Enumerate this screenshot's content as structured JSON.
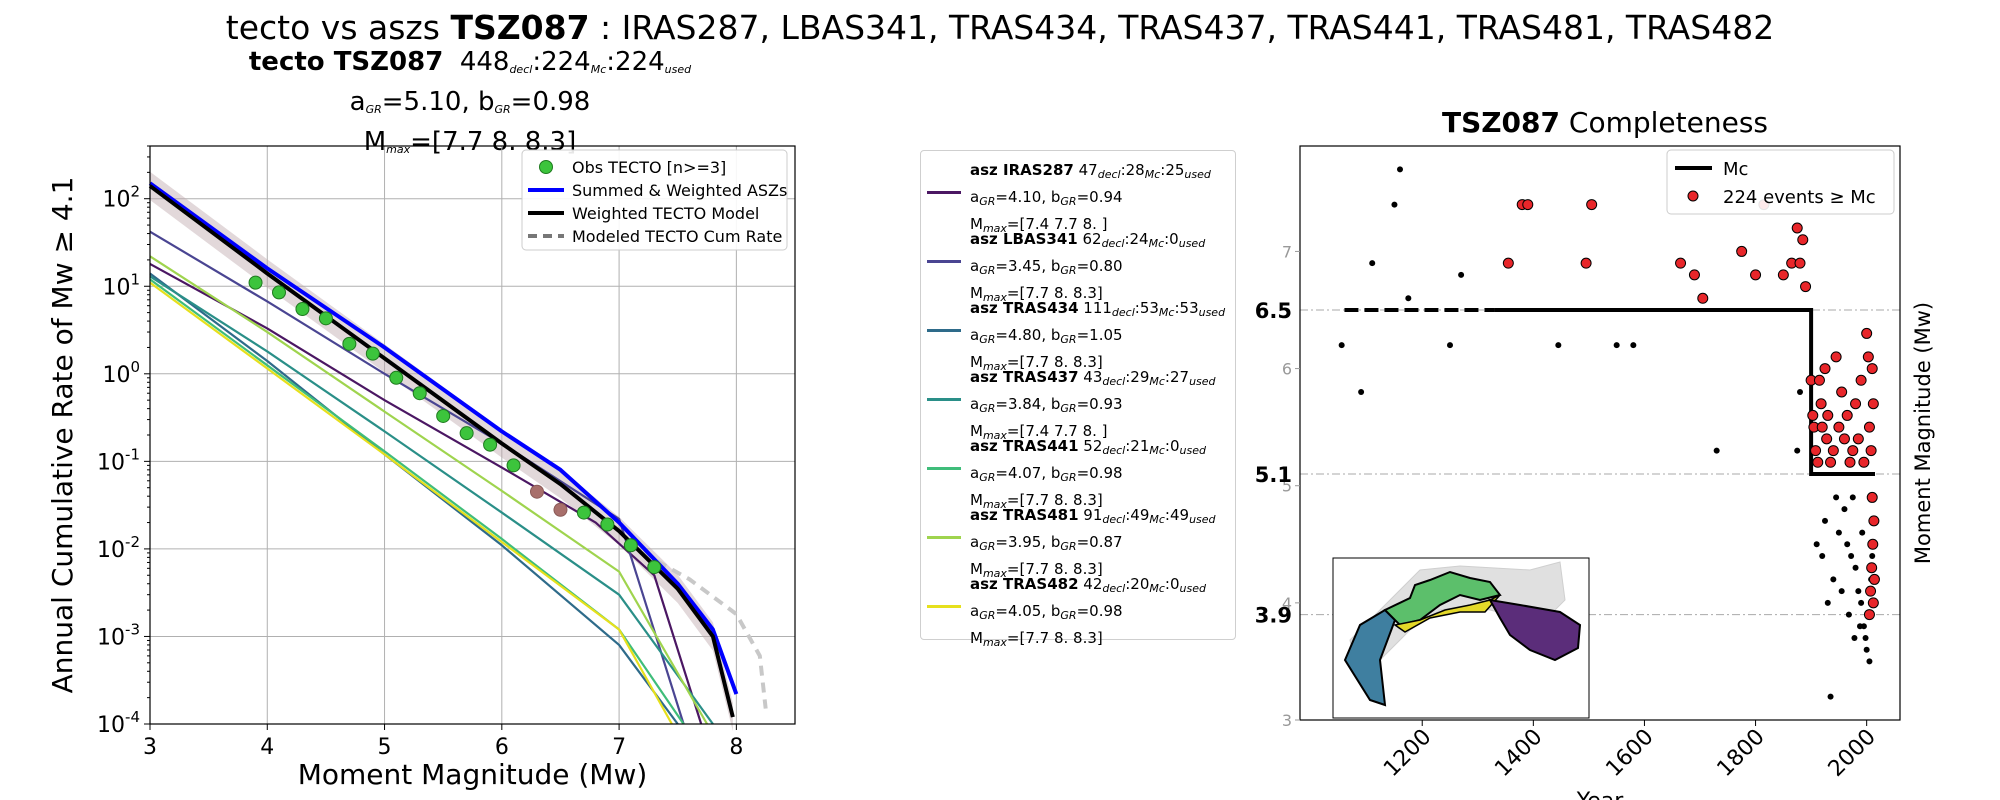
{
  "title": {
    "prefix": "tecto vs aszs",
    "zone": "TSZ087",
    "suffix": ": IRAS287, LBAS341, TRAS434, TRAS437, TRAS441, TRAS481, TRAS482"
  },
  "left_title": {
    "line1_bold": "tecto TSZ087",
    "line1_counts": [
      "448",
      "decl",
      "224",
      "Mc",
      "224",
      "used"
    ],
    "line2": [
      "a",
      "GR",
      "=5.10,  b",
      "GR",
      "=0.98"
    ],
    "line3": [
      "M",
      "max",
      "=[7.7 8.  8.3]"
    ]
  },
  "right_title": {
    "bold": "TSZ087",
    "rest": "Completeness"
  },
  "chart_data": [
    {
      "type": "line",
      "xlabel": "Moment Magnitude (Mw)",
      "ylabel": "Annual Cumulative Rate of Mw",
      "ylabel_suffix": "≥  4.1",
      "xlim": [
        3,
        8.5
      ],
      "ylim": [
        0.0001,
        400
      ],
      "yscale": "log",
      "x_ticks": [
        3,
        4,
        5,
        6,
        7,
        8
      ],
      "y_ticks": [
        "10^2",
        "10^1",
        "10^0",
        "10^-1",
        "10^-2",
        "10^-3",
        "10^-4"
      ],
      "grid": true,
      "legend_position": "top-right",
      "legend": [
        "Obs TECTO [n>=3]",
        "Summed & Weighted ASZs",
        "Weighted TECTO Model",
        "Modeled TECTO Cum Rate"
      ],
      "observed": {
        "name": "Obs TECTO [n>=3]",
        "color": "#3cc43c",
        "x": [
          3.9,
          4.1,
          4.3,
          4.5,
          4.7,
          4.9,
          5.1,
          5.3,
          5.5,
          5.7,
          5.9,
          6.1,
          6.3,
          6.5,
          6.7,
          6.9,
          7.1,
          7.3
        ],
        "y": [
          11,
          8.5,
          5.5,
          4.3,
          2.2,
          1.7,
          0.9,
          0.6,
          0.33,
          0.21,
          0.155,
          0.09,
          0.045,
          0.028,
          0.026,
          0.019,
          0.011,
          0.0062
        ]
      },
      "series": [
        {
          "name": "Summed & Weighted ASZs",
          "color": "#0000ff",
          "x": [
            3,
            4,
            5,
            6,
            6.5,
            7,
            7.5,
            7.8,
            8.0
          ],
          "y": [
            150,
            16,
            2.0,
            0.22,
            0.08,
            0.02,
            0.004,
            0.0012,
            0.00022
          ]
        },
        {
          "name": "Weighted TECTO Model",
          "color": "#000000",
          "x": [
            3,
            4,
            5,
            6,
            6.5,
            7,
            7.5,
            7.8,
            7.97
          ],
          "y": [
            140,
            14,
            1.5,
            0.16,
            0.055,
            0.016,
            0.0035,
            0.001,
            0.00012
          ]
        },
        {
          "name": "Modeled TECTO Cum Rate",
          "color": "#999999",
          "x": [
            7.2,
            7.6,
            8.0,
            8.2,
            8.25
          ],
          "y": [
            0.009,
            0.0045,
            0.0018,
            0.0006,
            0.00015
          ]
        },
        {
          "name": "asz IRAS287",
          "color": "#4b1763",
          "x": [
            3,
            4,
            5,
            6,
            6.8,
            7.3,
            7.7
          ],
          "y": [
            18,
            3.3,
            0.5,
            0.085,
            0.02,
            0.005,
            0.0001
          ]
        },
        {
          "name": "asz LBAS341",
          "color": "#4a4592",
          "x": [
            3,
            4,
            5,
            6,
            7,
            7.55
          ],
          "y": [
            42,
            6.7,
            1.0,
            0.16,
            0.022,
            0.0001
          ]
        },
        {
          "name": "asz TRAS434",
          "color": "#2e6b8a",
          "x": [
            3,
            4,
            5,
            6,
            7,
            7.5
          ],
          "y": [
            14,
            1.4,
            0.12,
            0.011,
            0.0008,
            0.0001
          ]
        },
        {
          "name": "asz TRAS437",
          "color": "#2a8f88",
          "x": [
            3,
            4,
            5,
            6,
            7,
            7.8
          ],
          "y": [
            13,
            1.8,
            0.22,
            0.026,
            0.003,
            0.0001
          ]
        },
        {
          "name": "asz TRAS441",
          "color": "#3fbd7a",
          "x": [
            3,
            4,
            5,
            6,
            7,
            7.55
          ],
          "y": [
            12,
            1.25,
            0.13,
            0.013,
            0.0012,
            0.0001
          ]
        },
        {
          "name": "asz TRAS481",
          "color": "#9fd44e",
          "x": [
            3,
            4,
            5,
            6,
            7,
            7.75
          ],
          "y": [
            22,
            3.0,
            0.37,
            0.046,
            0.0055,
            0.0001
          ]
        },
        {
          "name": "asz TRAS482",
          "color": "#e6e01c",
          "x": [
            3,
            4,
            5,
            6,
            7,
            7.45
          ],
          "y": [
            11,
            1.15,
            0.12,
            0.012,
            0.0012,
            0.0001
          ]
        }
      ]
    },
    {
      "type": "scatter",
      "title": "TSZ087 Completeness",
      "xlabel": "Year",
      "ylabel": "Moment Magnitude (Mw)",
      "xlim": [
        980,
        2060
      ],
      "ylim": [
        3,
        7.9
      ],
      "x_ticks": [
        1200,
        1400,
        1600,
        1800,
        2000
      ],
      "y_ticks": [
        3,
        4,
        5,
        6,
        7
      ],
      "mc_labels": [
        {
          "value": 6.5,
          "text": "6.5"
        },
        {
          "value": 5.1,
          "text": "5.1"
        },
        {
          "value": 3.9,
          "text": "3.9"
        }
      ],
      "legend": [
        "Mc",
        "224 events  ≥  Mc"
      ],
      "legend_position": "top-right",
      "mc_line": {
        "dashed_years": [
          1060,
          1330
        ],
        "x": [
          1330,
          1900,
          1900,
          2015
        ],
        "y": [
          6.5,
          6.5,
          5.1,
          5.1
        ]
      },
      "black_events": [
        [
          1055,
          6.2
        ],
        [
          1090,
          5.8
        ],
        [
          1110,
          6.9
        ],
        [
          1150,
          7.4
        ],
        [
          1160,
          7.7
        ],
        [
          1175,
          6.6
        ],
        [
          1250,
          6.2
        ],
        [
          1270,
          6.8
        ],
        [
          1445,
          6.2
        ],
        [
          1550,
          6.2
        ],
        [
          1580,
          6.2
        ],
        [
          1730,
          5.3
        ],
        [
          1875,
          5.3
        ],
        [
          1880,
          5.8
        ],
        [
          1920,
          4.4
        ],
        [
          1940,
          4.2
        ],
        [
          1950,
          4.6
        ],
        [
          1960,
          4.8
        ],
        [
          1965,
          4.5
        ],
        [
          1972,
          4.4
        ],
        [
          1980,
          4.3
        ],
        [
          1985,
          4.1
        ],
        [
          1990,
          4.0
        ],
        [
          1995,
          3.8
        ],
        [
          2000,
          3.6
        ],
        [
          2005,
          3.5
        ],
        [
          1930,
          4.0
        ],
        [
          1955,
          4.1
        ],
        [
          1968,
          3.9
        ],
        [
          1978,
          3.7
        ],
        [
          1988,
          3.8
        ],
        [
          1998,
          3.7
        ],
        [
          2003,
          3.9
        ],
        [
          2008,
          4.2
        ],
        [
          1910,
          4.5
        ],
        [
          1925,
          4.7
        ],
        [
          1945,
          4.9
        ],
        [
          1975,
          4.9
        ],
        [
          1992,
          4.6
        ],
        [
          2010,
          4.4
        ],
        [
          1935,
          3.2
        ]
      ],
      "red_events": [
        [
          1355,
          6.9
        ],
        [
          1380,
          7.4
        ],
        [
          1390,
          7.4
        ],
        [
          1495,
          6.9
        ],
        [
          1505,
          7.4
        ],
        [
          1665,
          6.9
        ],
        [
          1690,
          6.8
        ],
        [
          1705,
          6.6
        ],
        [
          1775,
          7.0
        ],
        [
          1800,
          6.8
        ],
        [
          1815,
          7.4
        ],
        [
          1850,
          6.8
        ],
        [
          1865,
          6.9
        ],
        [
          1875,
          7.2
        ],
        [
          1880,
          6.9
        ],
        [
          1885,
          7.1
        ],
        [
          1890,
          6.7
        ],
        [
          1900,
          5.9
        ],
        [
          1903,
          5.6
        ],
        [
          1905,
          5.5
        ],
        [
          1908,
          5.3
        ],
        [
          1912,
          5.2
        ],
        [
          1915,
          5.9
        ],
        [
          1918,
          5.7
        ],
        [
          1920,
          5.5
        ],
        [
          1925,
          6.0
        ],
        [
          1928,
          5.4
        ],
        [
          1930,
          5.6
        ],
        [
          1935,
          5.2
        ],
        [
          1940,
          5.3
        ],
        [
          1945,
          6.1
        ],
        [
          1950,
          5.5
        ],
        [
          1955,
          5.8
        ],
        [
          1960,
          5.4
        ],
        [
          1965,
          5.6
        ],
        [
          1970,
          5.2
        ],
        [
          1975,
          5.3
        ],
        [
          1980,
          5.7
        ],
        [
          1985,
          5.4
        ],
        [
          1990,
          5.9
        ],
        [
          1995,
          5.2
        ],
        [
          2000,
          6.3
        ],
        [
          2003,
          6.1
        ],
        [
          2005,
          5.5
        ],
        [
          2008,
          5.3
        ],
        [
          2010,
          6.0
        ],
        [
          2012,
          5.7
        ],
        [
          2005,
          3.9
        ],
        [
          2007,
          4.1
        ],
        [
          2009,
          4.3
        ],
        [
          2011,
          4.5
        ],
        [
          2013,
          4.7
        ],
        [
          2010,
          4.9
        ],
        [
          2012,
          4.0
        ],
        [
          2014,
          4.2
        ]
      ]
    }
  ],
  "legend_panel": [
    {
      "bold": "asz IRAS287",
      "counts": [
        "47",
        "decl",
        "28",
        "Mc",
        "25",
        "used"
      ],
      "a": "4.10",
      "b": "0.94",
      "mmax": "=[7.4 7.7 8. ]",
      "color": "#4b1763"
    },
    {
      "bold": "asz LBAS341",
      "counts": [
        "62",
        "decl",
        "24",
        "Mc",
        "0",
        "used"
      ],
      "a": "3.45",
      "b": "0.80",
      "mmax": "=[7.7 8.  8.3]",
      "color": "#4a4592"
    },
    {
      "bold": "asz TRAS434",
      "counts": [
        "111",
        "decl",
        "53",
        "Mc",
        "53",
        "used"
      ],
      "a": "4.80",
      "b": "1.05",
      "mmax": "=[7.7 8.  8.3]",
      "color": "#2e6b8a"
    },
    {
      "bold": "asz TRAS437",
      "counts": [
        "43",
        "decl",
        "29",
        "Mc",
        "27",
        "used"
      ],
      "a": "3.84",
      "b": "0.93",
      "mmax": "=[7.4 7.7 8. ]",
      "color": "#2a8f88"
    },
    {
      "bold": "asz TRAS441",
      "counts": [
        "52",
        "decl",
        "21",
        "Mc",
        "0",
        "used"
      ],
      "a": "4.07",
      "b": "0.98",
      "mmax": "=[7.7 8.  8.3]",
      "color": "#3fbd7a"
    },
    {
      "bold": "asz TRAS481",
      "counts": [
        "91",
        "decl",
        "49",
        "Mc",
        "49",
        "used"
      ],
      "a": "3.95",
      "b": "0.87",
      "mmax": "=[7.7 8.  8.3]",
      "color": "#9fd44e"
    },
    {
      "bold": "asz TRAS482",
      "counts": [
        "42",
        "decl",
        "20",
        "Mc",
        "0",
        "used"
      ],
      "a": "4.05",
      "b": "0.98",
      "mmax": "=[7.7 8.  8.3]",
      "color": "#e6e01c"
    }
  ],
  "legend_panel_labels": {
    "a": "a",
    "b": "b",
    "gr": "GR",
    "m": "M",
    "max": "max",
    "sep": ",  "
  }
}
